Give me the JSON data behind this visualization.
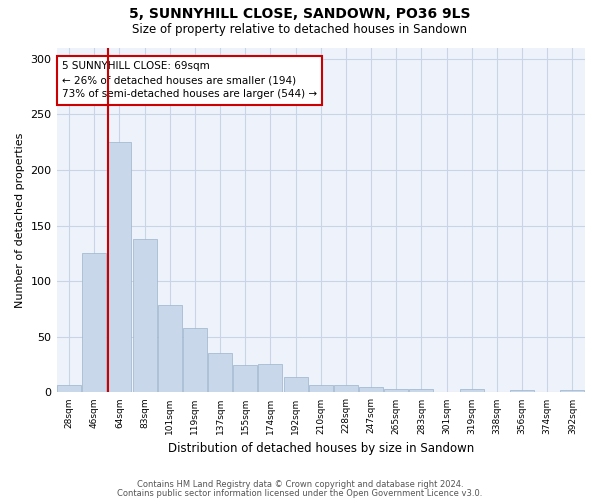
{
  "title1": "5, SUNNYHILL CLOSE, SANDOWN, PO36 9LS",
  "title2": "Size of property relative to detached houses in Sandown",
  "xlabel": "Distribution of detached houses by size in Sandown",
  "ylabel": "Number of detached properties",
  "categories": [
    "28sqm",
    "46sqm",
    "64sqm",
    "83sqm",
    "101sqm",
    "119sqm",
    "137sqm",
    "155sqm",
    "174sqm",
    "192sqm",
    "210sqm",
    "228sqm",
    "247sqm",
    "265sqm",
    "283sqm",
    "301sqm",
    "319sqm",
    "338sqm",
    "356sqm",
    "374sqm",
    "392sqm"
  ],
  "values": [
    7,
    125,
    225,
    138,
    79,
    58,
    35,
    25,
    26,
    14,
    7,
    7,
    5,
    3,
    3,
    0,
    3,
    0,
    2,
    0,
    2
  ],
  "bar_color": "#c8d8ea",
  "bar_edge_color": "#9ab4cc",
  "annotation_text": "5 SUNNYHILL CLOSE: 69sqm\n← 26% of detached houses are smaller (194)\n73% of semi-detached houses are larger (544) →",
  "annotation_box_color": "#ffffff",
  "annotation_box_edge_color": "#cc0000",
  "annotation_text_color": "#000000",
  "highlight_line_color": "#cc0000",
  "grid_color": "#c8d4e8",
  "background_color": "#eef2fa",
  "footer1": "Contains HM Land Registry data © Crown copyright and database right 2024.",
  "footer2": "Contains public sector information licensed under the Open Government Licence v3.0.",
  "ylim": [
    0,
    310
  ],
  "yticks": [
    0,
    50,
    100,
    150,
    200,
    250,
    300
  ]
}
